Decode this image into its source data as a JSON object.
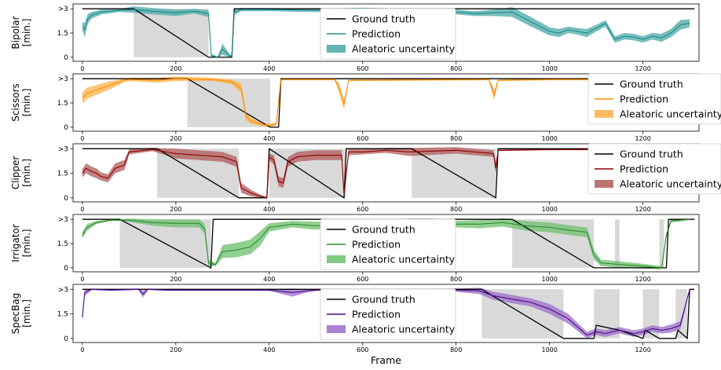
{
  "chart_data": [
    {
      "type": "line",
      "ylabel": [
        "Bipolar",
        "[min.]"
      ],
      "color": "#1f8a8a",
      "band_color": "#4aa8a8",
      "xlim": [
        -20,
        1320
      ],
      "ylim": [
        -0.25,
        3.3
      ],
      "x_ticks": [
        0,
        200,
        400,
        600,
        800,
        1000,
        1200
      ],
      "y_ticks": [
        0,
        1.5,
        3
      ],
      "y_tick_labels": [
        "0",
        "1.5",
        ">3"
      ],
      "legend": {
        "position": "center",
        "entries": [
          "Ground truth",
          "Prediction",
          "Aleatoric uncertainty"
        ]
      },
      "shaded_regions": [
        [
          110,
          270
        ]
      ],
      "ground_truth": {
        "x": [
          0,
          110,
          270,
          276,
          320,
          325,
          1310
        ],
        "y": [
          3,
          3,
          0,
          0,
          0,
          3,
          3
        ]
      },
      "prediction": {
        "x": [
          0,
          5,
          12,
          20,
          40,
          80,
          110,
          150,
          200,
          240,
          270,
          276,
          290,
          300,
          315,
          320,
          325,
          340,
          400,
          500,
          600,
          700,
          800,
          840,
          880,
          920,
          960,
          1000,
          1020,
          1040,
          1060,
          1080,
          1100,
          1120,
          1140,
          1160,
          1180,
          1200,
          1220,
          1240,
          1260,
          1280,
          1300
        ],
        "y": [
          1.9,
          1.7,
          2.4,
          2.6,
          2.8,
          2.9,
          2.95,
          2.85,
          2.75,
          2.85,
          2.7,
          0.1,
          0.0,
          0.5,
          0.1,
          0.05,
          2.8,
          2.95,
          2.95,
          2.9,
          2.95,
          2.85,
          2.8,
          2.7,
          2.75,
          2.8,
          2.2,
          1.6,
          1.5,
          1.7,
          1.6,
          1.5,
          1.8,
          2.1,
          1.1,
          1.3,
          1.25,
          1.1,
          1.3,
          1.2,
          1.5,
          2.0,
          2.1
        ]
      },
      "uncertainty": [
        0.25,
        0.45,
        0.3,
        0.2,
        0.15,
        0.1,
        0.2,
        0.2,
        0.2,
        0.15,
        0.2,
        0.1,
        0.05,
        0.35,
        0.1,
        0.05,
        0.2,
        0.1,
        0.1,
        0.1,
        0.12,
        0.15,
        0.15,
        0.15,
        0.2,
        0.3,
        0.3,
        0.25,
        0.25,
        0.2,
        0.2,
        0.25,
        0.2,
        0.2,
        0.2,
        0.2,
        0.2,
        0.2,
        0.2,
        0.25,
        0.25,
        0.3,
        0.25
      ]
    },
    {
      "type": "line",
      "ylabel": [
        "Scissors",
        "[min.]"
      ],
      "color": "#ff8c00",
      "band_color": "#ffb04a",
      "xlim": [
        -20,
        1320
      ],
      "ylim": [
        -0.25,
        3.3
      ],
      "x_ticks": [
        0,
        200,
        400,
        600,
        800,
        1000,
        1200
      ],
      "y_ticks": [
        0,
        1.5,
        3
      ],
      "y_tick_labels": [
        "0",
        "1.5",
        ">3"
      ],
      "legend": {
        "position": "right",
        "entries": [
          "Ground truth",
          "Prediction",
          "Aleatoric uncertainty"
        ]
      },
      "shaded_regions": [
        [
          225,
          402
        ]
      ],
      "ground_truth": {
        "x": [
          0,
          225,
          402,
          420,
          425,
          1310
        ],
        "y": [
          3,
          3,
          0,
          0,
          3,
          3
        ]
      },
      "prediction": {
        "x": [
          0,
          10,
          30,
          60,
          90,
          100,
          160,
          200,
          280,
          320,
          340,
          350,
          360,
          380,
          400,
          415,
          425,
          440,
          540,
          550,
          560,
          570,
          870,
          878,
          882,
          890,
          1000,
          1300
        ],
        "y": [
          1.8,
          2.1,
          2.3,
          2.6,
          2.9,
          2.95,
          2.9,
          3.0,
          2.95,
          2.8,
          2.4,
          0.7,
          0.4,
          0.2,
          0.1,
          0.2,
          2.95,
          2.95,
          2.95,
          2.4,
          1.4,
          2.9,
          2.95,
          2.3,
          2.0,
          2.9,
          2.95,
          2.95
        ]
      },
      "uncertainty": [
        0.35,
        0.35,
        0.3,
        0.25,
        0.1,
        0.1,
        0.15,
        0.15,
        0.1,
        0.15,
        0.3,
        0.25,
        0.2,
        0.1,
        0.1,
        0.1,
        0.05,
        0.05,
        0.05,
        0.3,
        0.3,
        0.05,
        0.05,
        0.3,
        0.3,
        0.05,
        0.05,
        0.05
      ]
    },
    {
      "type": "line",
      "ylabel": [
        "Clipper",
        "[min.]"
      ],
      "color": "#8b0000",
      "band_color": "#b05a5a",
      "xlim": [
        -20,
        1320
      ],
      "ylim": [
        -0.25,
        3.3
      ],
      "x_ticks": [
        0,
        200,
        400,
        600,
        800,
        1000,
        1200
      ],
      "y_ticks": [
        0,
        1.5,
        3
      ],
      "y_tick_labels": [
        "0",
        "1.5",
        ">3"
      ],
      "legend": {
        "position": "right",
        "entries": [
          "Ground truth",
          "Prediction",
          "Aleatoric uncertainty"
        ]
      },
      "shaded_regions": [
        [
          160,
          335
        ],
        [
          400,
          565
        ],
        [
          705,
          885
        ]
      ],
      "ground_truth": {
        "x": [
          0,
          160,
          335,
          395,
          400,
          560,
          565,
          705,
          885,
          890,
          1310
        ],
        "y": [
          3,
          3,
          0,
          0,
          3,
          0,
          3,
          3,
          0,
          3,
          3
        ]
      },
      "prediction": {
        "x": [
          0,
          8,
          20,
          30,
          40,
          55,
          70,
          90,
          100,
          150,
          200,
          250,
          300,
          330,
          340,
          360,
          380,
          395,
          400,
          410,
          420,
          430,
          440,
          460,
          500,
          555,
          560,
          570,
          600,
          650,
          700,
          800,
          880,
          885,
          890,
          1000,
          1300
        ],
        "y": [
          1.5,
          1.8,
          1.6,
          1.5,
          1.3,
          1.2,
          1.8,
          2.0,
          2.8,
          2.95,
          2.7,
          2.6,
          2.5,
          2.2,
          0.6,
          0.3,
          0.1,
          0.0,
          2.5,
          2.3,
          1.0,
          0.9,
          2.2,
          2.5,
          2.6,
          2.6,
          0.2,
          2.8,
          2.8,
          2.9,
          2.8,
          2.9,
          2.7,
          1.8,
          2.9,
          2.95,
          2.95
        ]
      },
      "uncertainty": [
        0.25,
        0.3,
        0.3,
        0.3,
        0.25,
        0.25,
        0.3,
        0.3,
        0.15,
        0.1,
        0.3,
        0.3,
        0.3,
        0.3,
        0.3,
        0.2,
        0.1,
        0.05,
        0.2,
        0.3,
        0.3,
        0.3,
        0.3,
        0.3,
        0.3,
        0.3,
        0.1,
        0.2,
        0.15,
        0.15,
        0.25,
        0.2,
        0.2,
        0.4,
        0.05,
        0.05,
        0.05
      ]
    },
    {
      "type": "line",
      "ylabel": [
        "Irrigator",
        "[min.]"
      ],
      "color": "#2e8b2e",
      "band_color": "#6cbf6c",
      "xlim": [
        -20,
        1320
      ],
      "ylim": [
        -0.25,
        3.3
      ],
      "x_ticks": [
        0,
        200,
        400,
        600,
        800,
        1000,
        1200
      ],
      "y_ticks": [
        0,
        1.5,
        3
      ],
      "y_tick_labels": [
        "0",
        "1.5",
        ">3"
      ],
      "legend": {
        "position": "center",
        "entries": [
          "Ground truth",
          "Prediction",
          "Aleatoric uncertainty"
        ]
      },
      "shaded_regions": [
        [
          80,
          275
        ],
        [
          920,
          1095
        ],
        [
          1140,
          1150
        ],
        [
          1235,
          1245
        ]
      ],
      "ground_truth": {
        "x": [
          0,
          80,
          275,
          280,
          920,
          1095,
          1240,
          1250,
          1255,
          1310
        ],
        "y": [
          3,
          3,
          0,
          3,
          3,
          0,
          0,
          0,
          3,
          3
        ]
      },
      "prediction": {
        "x": [
          0,
          10,
          30,
          60,
          80,
          100,
          150,
          200,
          250,
          262,
          270,
          285,
          300,
          330,
          360,
          380,
          400,
          450,
          500,
          560,
          600,
          640,
          700,
          750,
          800,
          850,
          900,
          950,
          1000,
          1050,
          1080,
          1095,
          1110,
          1150,
          1200,
          1240,
          1250,
          1260,
          1300
        ],
        "y": [
          2.0,
          2.5,
          2.8,
          2.95,
          2.95,
          2.95,
          2.8,
          2.75,
          2.75,
          2.4,
          0.3,
          0.2,
          1.0,
          1.1,
          1.3,
          1.8,
          2.5,
          2.7,
          2.6,
          2.8,
          2.6,
          2.75,
          2.9,
          2.85,
          2.7,
          2.7,
          2.8,
          2.6,
          2.5,
          2.3,
          2.2,
          0.8,
          0.3,
          0.2,
          0.1,
          0.0,
          2.0,
          2.9,
          3.0
        ]
      },
      "uncertainty": [
        0.2,
        0.2,
        0.1,
        0.05,
        0.05,
        0.1,
        0.2,
        0.25,
        0.25,
        0.3,
        0.2,
        0.1,
        0.4,
        0.45,
        0.45,
        0.45,
        0.25,
        0.2,
        0.25,
        0.2,
        0.25,
        0.2,
        0.15,
        0.2,
        0.2,
        0.25,
        0.25,
        0.3,
        0.3,
        0.3,
        0.3,
        0.3,
        0.2,
        0.2,
        0.15,
        0.1,
        0.2,
        0.1,
        0.05
      ]
    },
    {
      "type": "line",
      "ylabel": [
        "SpecBag",
        "[min.]"
      ],
      "color": "#4b0a8a",
      "band_color": "#9b6cc8",
      "xlim": [
        -20,
        1320
      ],
      "ylim": [
        -0.25,
        3.3
      ],
      "x_ticks": [
        0,
        200,
        400,
        600,
        800,
        1000,
        1200
      ],
      "y_ticks": [
        0,
        1.5,
        3
      ],
      "y_tick_labels": [
        "0",
        "1.5",
        ">3"
      ],
      "xlabel": "Frame",
      "legend": {
        "position": "center",
        "entries": [
          "Ground truth",
          "Prediction",
          "Aleatoric uncertainty"
        ]
      },
      "shaded_regions": [
        [
          855,
          1030
        ],
        [
          1095,
          1150
        ],
        [
          1200,
          1235
        ],
        [
          1270,
          1295
        ]
      ],
      "ground_truth": {
        "x": [
          0,
          855,
          1030,
          1095,
          1100,
          1150,
          1200,
          1205,
          1235,
          1270,
          1275,
          1295,
          1300,
          1310
        ],
        "y": [
          3,
          3,
          0,
          0,
          0.8,
          0.5,
          0,
          0.5,
          0,
          0,
          0.5,
          0,
          3,
          3
        ]
      },
      "prediction": {
        "x": [
          0,
          5,
          20,
          60,
          120,
          130,
          140,
          180,
          200,
          300,
          400,
          450,
          480,
          500,
          600,
          700,
          800,
          850,
          880,
          920,
          960,
          1000,
          1040,
          1060,
          1080,
          1100,
          1120,
          1150,
          1180,
          1200,
          1220,
          1240,
          1260,
          1280,
          1300
        ],
        "y": [
          1.3,
          2.8,
          3.0,
          2.95,
          3.0,
          2.7,
          3.0,
          2.95,
          2.95,
          2.95,
          2.95,
          2.8,
          2.9,
          2.95,
          2.95,
          2.95,
          2.95,
          2.9,
          2.6,
          2.4,
          2.2,
          1.8,
          1.2,
          0.7,
          0.2,
          0.4,
          0.3,
          0.5,
          0.3,
          0.4,
          0.6,
          0.5,
          0.6,
          0.8,
          3.0
        ]
      },
      "uncertainty": [
        0.3,
        0.2,
        0.05,
        0.05,
        0.05,
        0.2,
        0.05,
        0.05,
        0.05,
        0.05,
        0.05,
        0.25,
        0.1,
        0.05,
        0.05,
        0.05,
        0.1,
        0.2,
        0.25,
        0.25,
        0.25,
        0.3,
        0.3,
        0.25,
        0.2,
        0.2,
        0.2,
        0.2,
        0.2,
        0.2,
        0.2,
        0.2,
        0.25,
        0.25,
        0.05
      ]
    }
  ]
}
